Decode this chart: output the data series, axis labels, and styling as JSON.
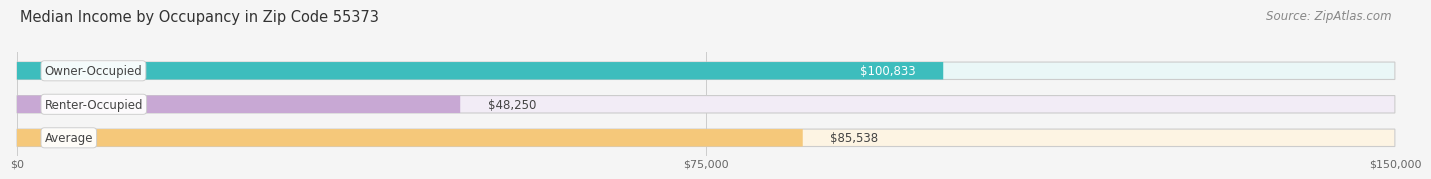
{
  "title": "Median Income by Occupancy in Zip Code 55373",
  "source": "Source: ZipAtlas.com",
  "categories": [
    "Owner-Occupied",
    "Renter-Occupied",
    "Average"
  ],
  "values": [
    100833,
    48250,
    85538
  ],
  "labels": [
    "$100,833",
    "$48,250",
    "$85,538"
  ],
  "bar_colors": [
    "#3dbdbd",
    "#c8a8d4",
    "#f5c87a"
  ],
  "bar_bg_colors": [
    "#eaf7f7",
    "#f2ecf6",
    "#fdf4e3"
  ],
  "bar_edge_colors": [
    "#b0dede",
    "#d8c4e4",
    "#f0d8a0"
  ],
  "xlim": [
    0,
    150000
  ],
  "xticks": [
    0,
    75000,
    150000
  ],
  "xtick_labels": [
    "$0",
    "$75,000",
    "$150,000"
  ],
  "title_fontsize": 10.5,
  "source_fontsize": 8.5,
  "label_fontsize": 8.5,
  "cat_fontsize": 8.5,
  "background_color": "#f5f5f5"
}
